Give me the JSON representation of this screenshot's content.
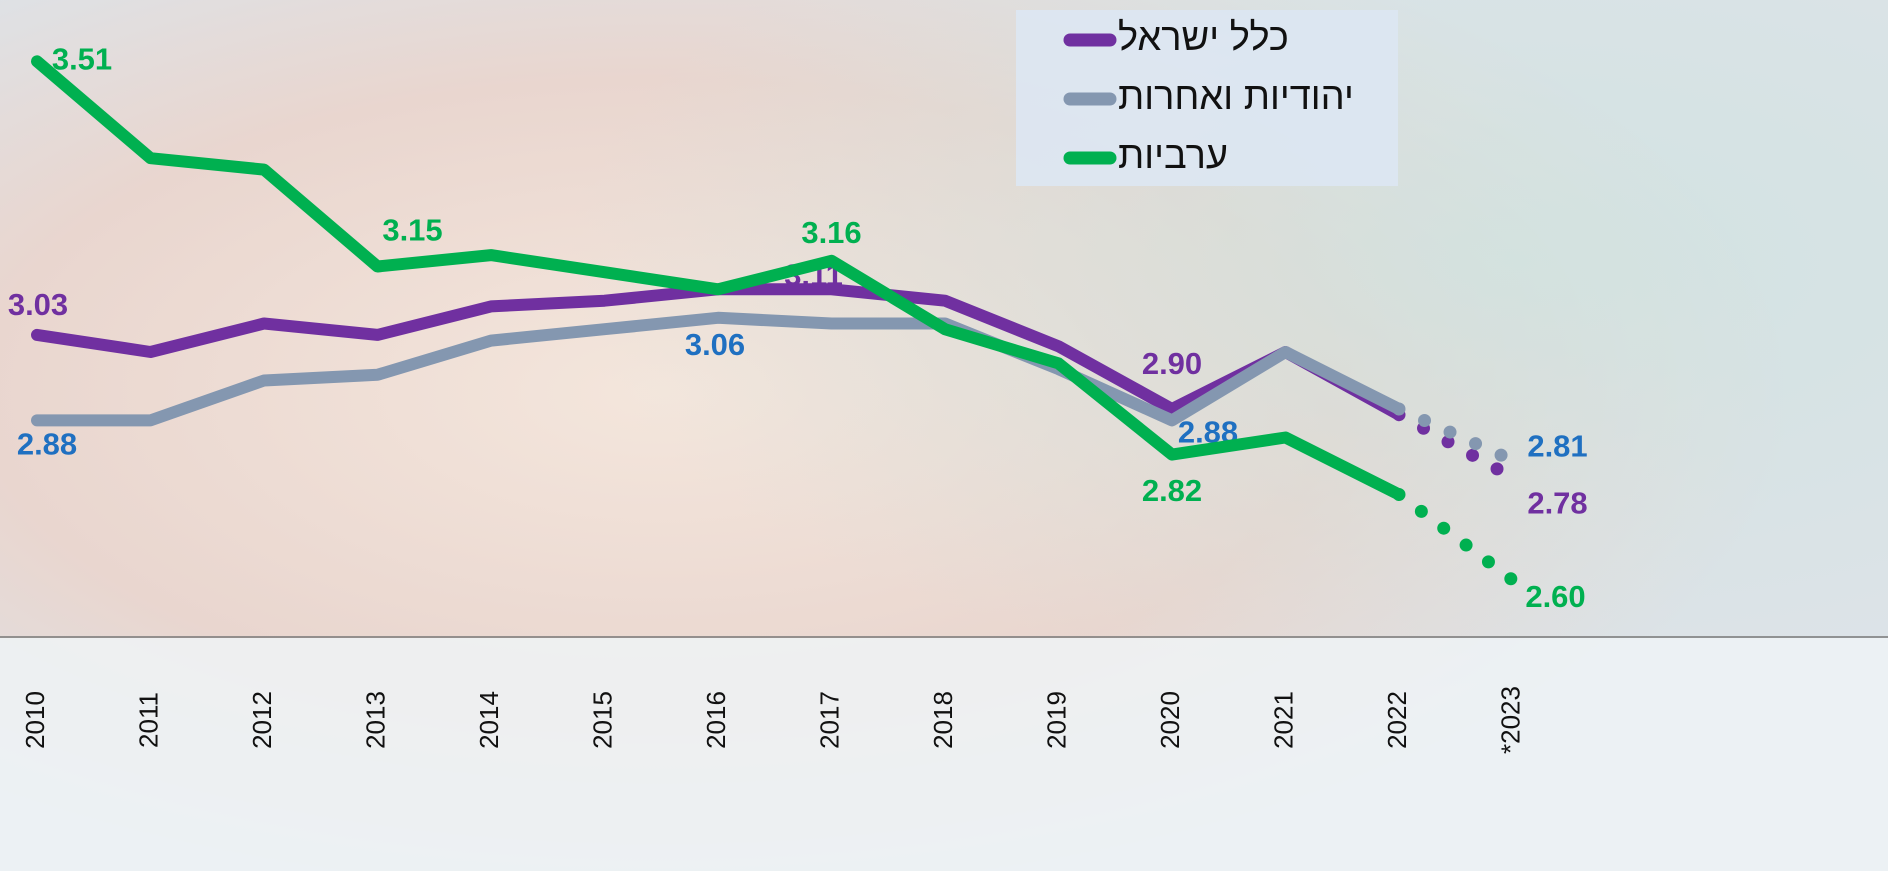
{
  "chart_data": {
    "type": "line",
    "categories": [
      "2010",
      "2011",
      "2012",
      "2013",
      "2014",
      "2015",
      "2016",
      "2017",
      "2018",
      "2019",
      "2020",
      "2021",
      "2022",
      "*2023"
    ],
    "ylim": [
      2.5,
      3.6
    ],
    "dotted_last_segment": true,
    "series": [
      {
        "name": "כלל ישראל",
        "color": "#7030a0",
        "label_color": "#7030a0",
        "values": [
          3.03,
          3.0,
          3.05,
          3.03,
          3.08,
          3.09,
          3.11,
          3.11,
          3.09,
          3.01,
          2.9,
          3.0,
          2.89,
          2.78
        ],
        "value_labels": [
          "3.03",
          null,
          null,
          null,
          null,
          null,
          null,
          "3.11",
          null,
          null,
          "2.90",
          null,
          null,
          "2.78"
        ]
      },
      {
        "name": "יהודיות ואחרות",
        "color": "#8497b0",
        "label_color": "#1f70c1",
        "values": [
          2.88,
          2.88,
          2.95,
          2.96,
          3.02,
          3.04,
          3.06,
          3.05,
          3.05,
          2.97,
          2.88,
          3.0,
          2.9,
          2.81
        ],
        "value_labels": [
          "2.88",
          null,
          null,
          null,
          null,
          null,
          "3.06",
          null,
          null,
          null,
          "2.88",
          null,
          null,
          "2.81"
        ]
      },
      {
        "name": "ערביות",
        "color": "#00b050",
        "label_color": "#00b050",
        "values": [
          3.51,
          3.34,
          3.32,
          3.15,
          3.17,
          3.14,
          3.11,
          3.16,
          3.04,
          2.98,
          2.82,
          2.85,
          2.75,
          2.6
        ],
        "value_labels": [
          "3.51",
          null,
          null,
          "3.15",
          null,
          null,
          null,
          "3.16",
          null,
          null,
          "2.82",
          null,
          null,
          "2.60"
        ]
      }
    ]
  }
}
